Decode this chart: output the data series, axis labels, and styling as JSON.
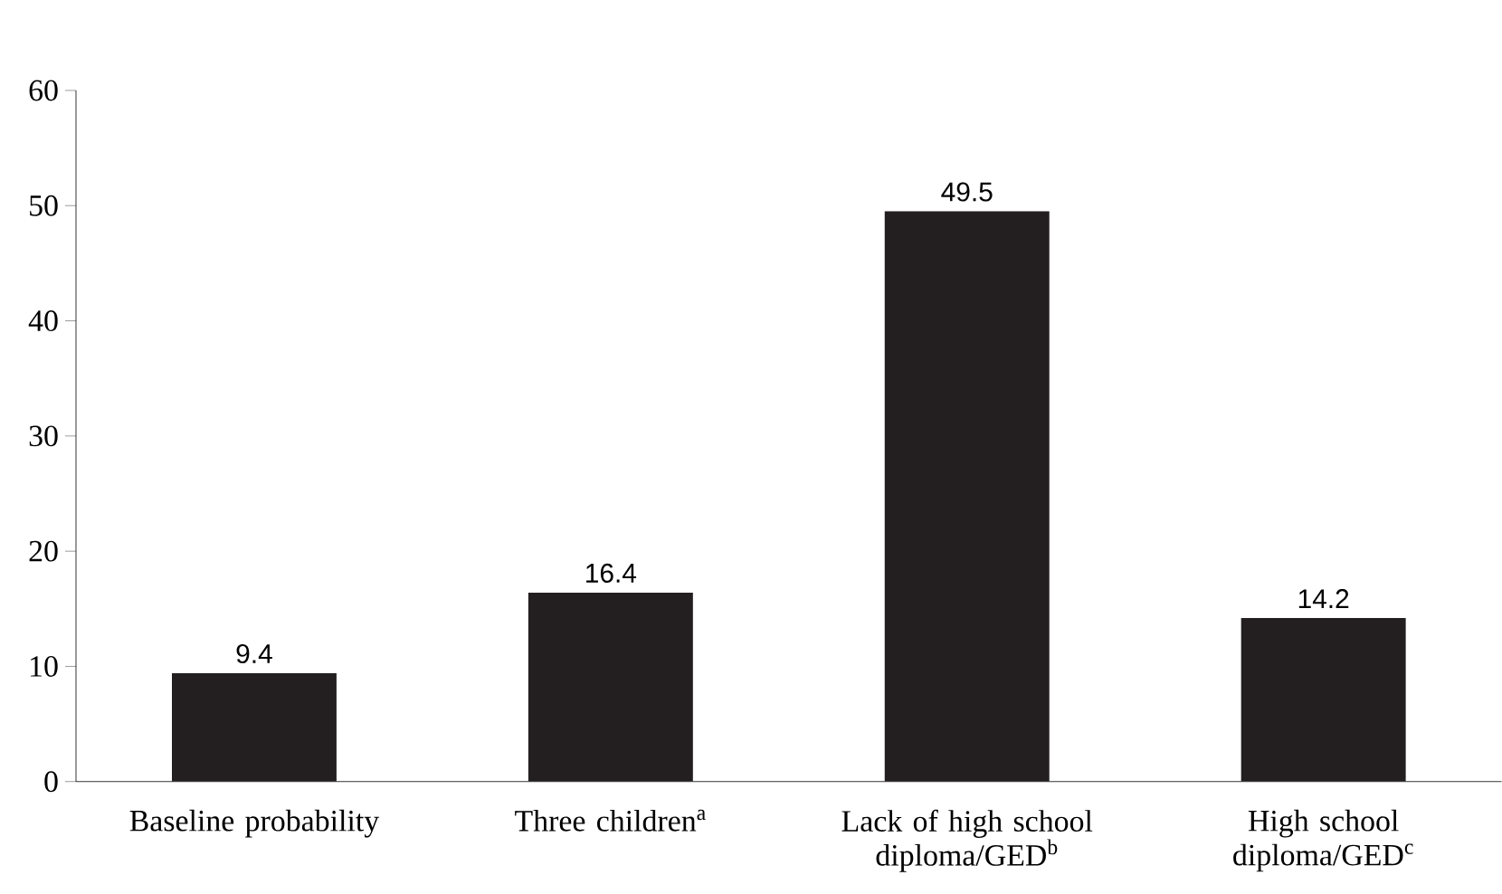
{
  "chart_data": {
    "type": "bar",
    "categories": [
      "Baseline probability",
      "Three children$^{a}$",
      "Lack of high school diploma/GED$^{b}$",
      "High school diploma/GED$^{c}$"
    ],
    "values": [
      9.4,
      16.4,
      49.5,
      14.2
    ],
    "color": "#231f20",
    "ylim": [
      0,
      60
    ],
    "yticks": [
      0,
      10,
      20,
      30,
      40,
      50,
      60
    ],
    "data_labels": true,
    "grid": false
  }
}
